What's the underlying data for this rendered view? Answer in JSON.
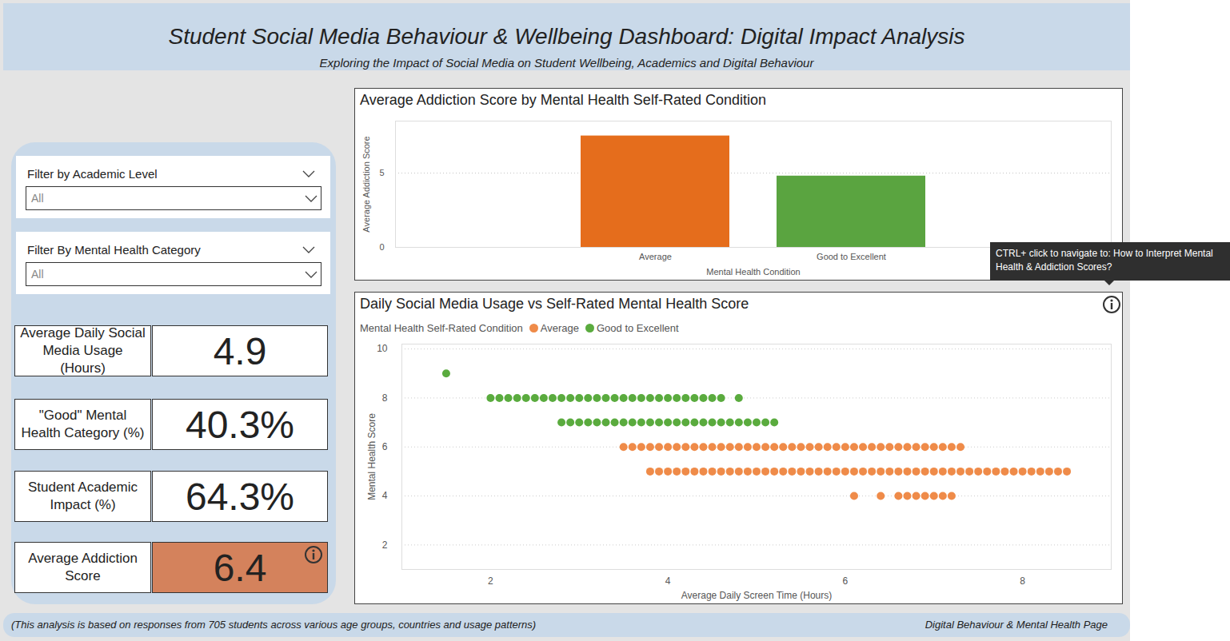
{
  "header": {
    "title": "Student Social Media Behaviour & Wellbeing Dashboard: Digital Impact Analysis",
    "subtitle": "Exploring the Impact of Social Media on Student Wellbeing, Academics and Digital Behaviour"
  },
  "filters": [
    {
      "label": "Filter by Academic Level",
      "value": "All"
    },
    {
      "label": "Filter By Mental Health Category",
      "value": "All"
    }
  ],
  "kpis": [
    {
      "label": "Average Daily Social Media Usage (Hours)",
      "value": 4.9
    },
    {
      "label": "\"Good\" Mental Health Category (%)",
      "value": 40.3,
      "value_label": "40.3%"
    },
    {
      "label": "Student Academic Impact (%)",
      "value": 64.3,
      "value_label": "64.3%"
    },
    {
      "label": "Average Addiction Score",
      "value": 6.4,
      "color": "#d4825c"
    }
  ],
  "chart_data": [
    {
      "type": "bar",
      "title": "Average Addiction Score by Mental Health Self-Rated Condition",
      "categories": [
        "Average",
        "Good to Excellent"
      ],
      "values": [
        7.5,
        4.8
      ],
      "colors": [
        "#e56d1c",
        "#5aa440"
      ],
      "xlabel": "Mental Health Condition",
      "ylabel": "Average Addiction Score",
      "ylim": [
        0,
        8.5
      ],
      "yticks": [
        0,
        5
      ],
      "grid": true
    },
    {
      "type": "scatter",
      "title": "Daily Social Media Usage vs Self-Rated Mental Health Score",
      "legend_title": "Mental Health Self-Rated Condition",
      "legend": "top-left",
      "xlabel": "Average Daily Screen Time (Hours)",
      "ylabel": "Mental Health Score",
      "xlim": [
        1,
        9
      ],
      "ylim": [
        1,
        10.2
      ],
      "xticks": [
        2,
        4,
        6,
        8
      ],
      "yticks": [
        2,
        4,
        6,
        8,
        10
      ],
      "grid": true,
      "series": [
        {
          "name": "Average",
          "color": "#ef8b49",
          "marker": "circle",
          "x": [
            3.5,
            3.6,
            3.7,
            3.8,
            3.9,
            4.0,
            4.1,
            4.2,
            4.3,
            4.4,
            4.5,
            4.6,
            4.7,
            4.8,
            4.9,
            5.0,
            5.1,
            5.2,
            5.3,
            5.4,
            5.5,
            5.6,
            5.7,
            5.8,
            5.9,
            6.0,
            6.1,
            6.2,
            6.3,
            6.4,
            6.5,
            6.6,
            6.7,
            6.8,
            6.9,
            7.0,
            7.1,
            7.2,
            7.3,
            3.8,
            3.9,
            4.0,
            4.1,
            4.2,
            4.3,
            4.4,
            4.5,
            4.6,
            4.7,
            4.8,
            4.9,
            5.0,
            5.1,
            5.2,
            5.3,
            5.4,
            5.5,
            5.6,
            5.7,
            5.8,
            5.9,
            6.0,
            6.1,
            6.2,
            6.3,
            6.4,
            6.5,
            6.6,
            6.7,
            6.8,
            6.9,
            7.0,
            7.1,
            7.2,
            7.3,
            7.4,
            7.5,
            7.6,
            7.7,
            7.8,
            7.9,
            8.0,
            8.1,
            8.2,
            8.3,
            8.4,
            8.5,
            6.1,
            6.4,
            6.6,
            6.7,
            6.8,
            6.9,
            7.0,
            7.1,
            7.2
          ],
          "values": [
            6,
            6,
            6,
            6,
            6,
            6,
            6,
            6,
            6,
            6,
            6,
            6,
            6,
            6,
            6,
            6,
            6,
            6,
            6,
            6,
            6,
            6,
            6,
            6,
            6,
            6,
            6,
            6,
            6,
            6,
            6,
            6,
            6,
            6,
            6,
            6,
            6,
            6,
            6,
            5,
            5,
            5,
            5,
            5,
            5,
            5,
            5,
            5,
            5,
            5,
            5,
            5,
            5,
            5,
            5,
            5,
            5,
            5,
            5,
            5,
            5,
            5,
            5,
            5,
            5,
            5,
            5,
            5,
            5,
            5,
            5,
            5,
            5,
            5,
            5,
            5,
            5,
            5,
            5,
            5,
            5,
            5,
            5,
            5,
            5,
            5,
            5,
            4,
            4,
            4,
            4,
            4,
            4,
            4,
            4,
            4
          ]
        },
        {
          "name": "Good to Excellent",
          "color": "#5aab3e",
          "marker": "circle",
          "x": [
            1.5,
            2.0,
            2.1,
            2.2,
            2.3,
            2.4,
            2.5,
            2.6,
            2.7,
            2.8,
            2.9,
            3.0,
            3.1,
            3.2,
            3.3,
            3.4,
            3.5,
            3.6,
            3.7,
            3.8,
            3.9,
            4.0,
            4.1,
            4.2,
            4.3,
            4.4,
            4.5,
            4.6,
            4.8,
            2.8,
            2.9,
            3.0,
            3.1,
            3.2,
            3.3,
            3.4,
            3.5,
            3.6,
            3.7,
            3.8,
            3.9,
            4.0,
            4.1,
            4.2,
            4.3,
            4.4,
            4.5,
            4.6,
            4.7,
            4.8,
            4.9,
            5.0,
            5.1,
            5.2
          ],
          "values": [
            9,
            8,
            8,
            8,
            8,
            8,
            8,
            8,
            8,
            8,
            8,
            8,
            8,
            8,
            8,
            8,
            8,
            8,
            8,
            8,
            8,
            8,
            8,
            8,
            8,
            8,
            8,
            8,
            8,
            7,
            7,
            7,
            7,
            7,
            7,
            7,
            7,
            7,
            7,
            7,
            7,
            7,
            7,
            7,
            7,
            7,
            7,
            7,
            7,
            7,
            7,
            7,
            7,
            7
          ]
        }
      ]
    }
  ],
  "tooltip": "CTRL+ click to navigate to: How to Interpret Mental Health & Addiction Scores?",
  "footer": {
    "note": "(This analysis is based on responses from 705 students across various age groups, countries and usage patterns)",
    "page": "Digital Behaviour & Mental Health Page"
  }
}
